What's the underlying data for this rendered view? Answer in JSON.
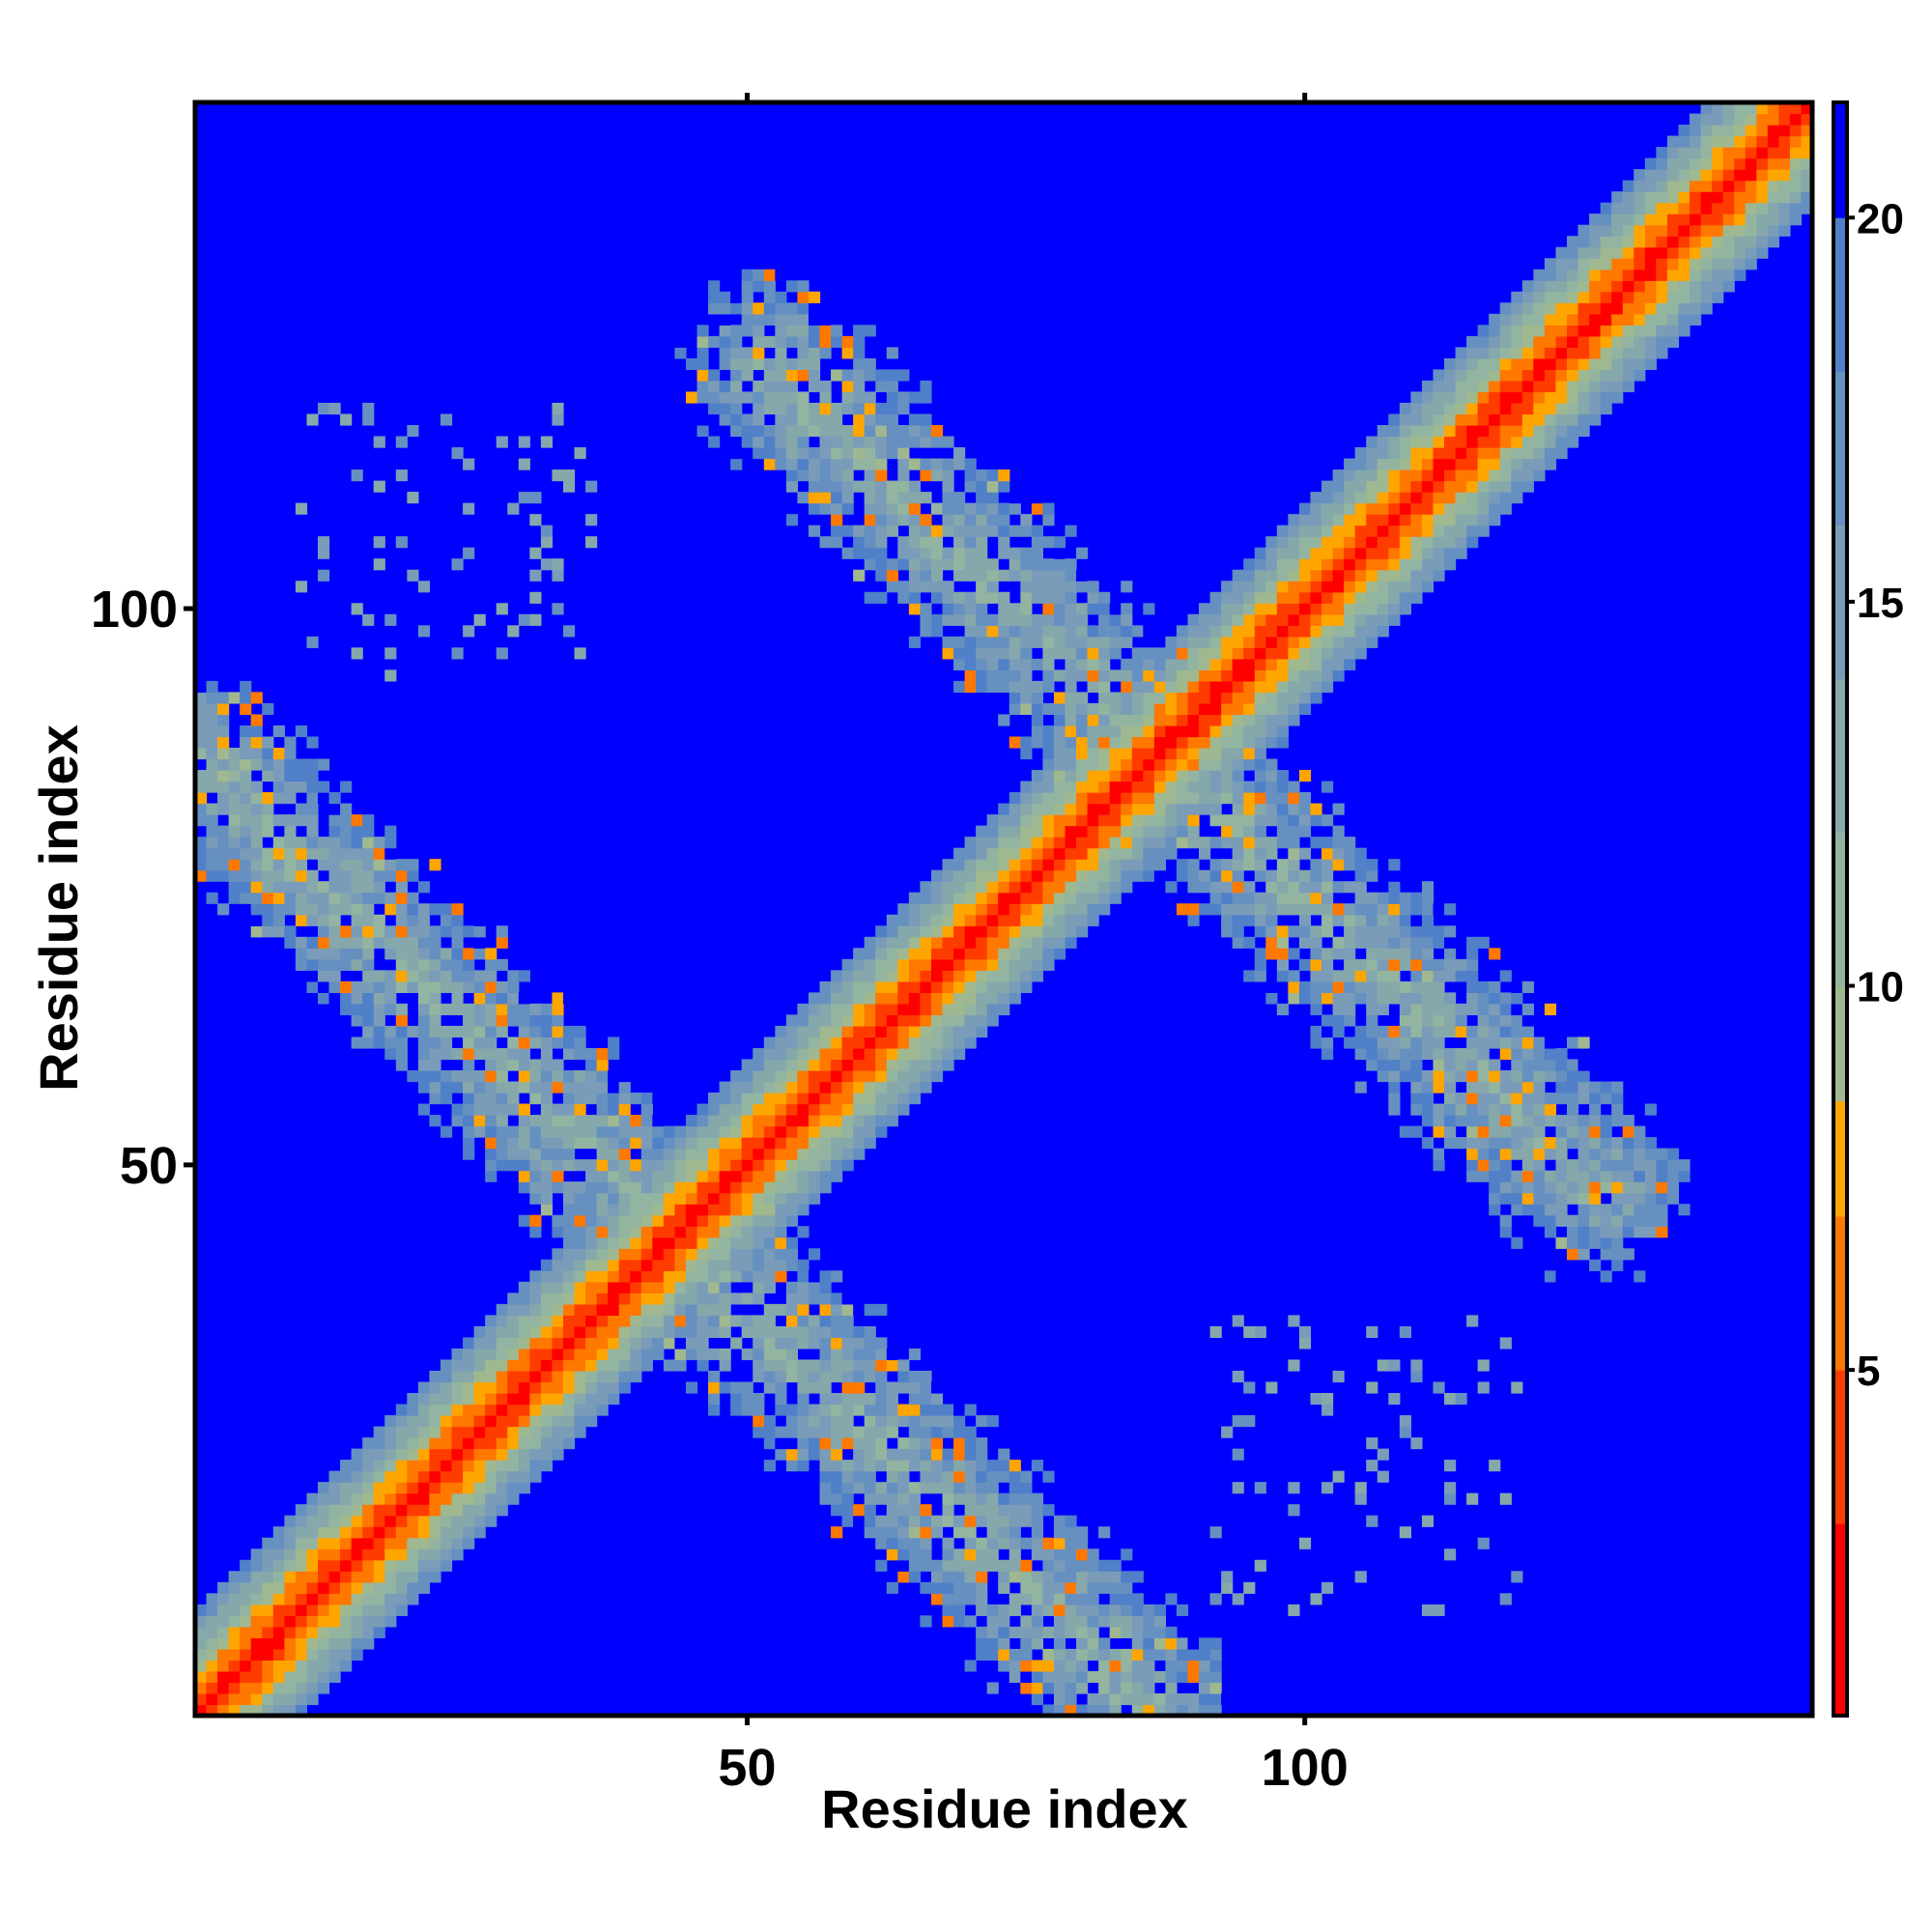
{
  "chart_data": {
    "type": "heatmap",
    "title": "",
    "xlabel": "Residue index",
    "ylabel": "Residue index",
    "n_residues": 145,
    "xlim": [
      1,
      145
    ],
    "ylim": [
      1,
      145
    ],
    "x_ticks": [
      50,
      100
    ],
    "y_ticks": [
      50,
      100
    ],
    "grid": false,
    "colorbar": {
      "position": "right",
      "range": [
        0.5,
        21.5
      ],
      "ticks": [
        5,
        10,
        15,
        20
      ],
      "colors": [
        {
          "max": 3,
          "color": "#ff0000"
        },
        {
          "max": 5,
          "color": "#ff3c00"
        },
        {
          "max": 7,
          "color": "#ff7800"
        },
        {
          "max": 8.5,
          "color": "#ffa500"
        },
        {
          "max": 10,
          "color": "#a0b890"
        },
        {
          "max": 12,
          "color": "#93b4a0"
        },
        {
          "max": 14,
          "color": "#86a8aa"
        },
        {
          "max": 16,
          "color": "#7a9cb8"
        },
        {
          "max": 18,
          "color": "#6690c0"
        },
        {
          "max": 20,
          "color": "#5080c8"
        },
        {
          "max": 21.5,
          "color": "#0000ff"
        }
      ]
    },
    "contact_bands": [
      {
        "name": "diagonal",
        "from": [
          1,
          1
        ],
        "to": [
          145,
          145
        ]
      },
      {
        "name": "antiparallel-upper",
        "from": [
          52,
          122
        ],
        "to": [
          126,
          48
        ]
      },
      {
        "name": "antiparallel-lower",
        "from": [
          1,
          86
        ],
        "to": [
          86,
          1
        ]
      }
    ],
    "background_value": 21
  }
}
